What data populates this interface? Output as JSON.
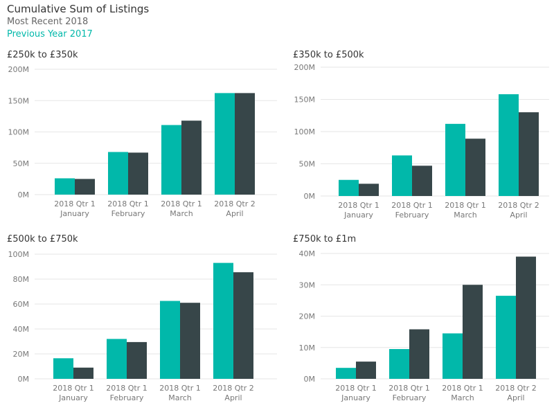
{
  "header": {
    "title": "Cumulative Sum of Listings",
    "legend": [
      {
        "label": "Most Recent 2018",
        "color": "#666666"
      },
      {
        "label": "Previous Year 2017",
        "color": "#01b8aa"
      }
    ]
  },
  "colors": {
    "series_2018": "#01b8aa",
    "series_2017": "#374649",
    "axis_text": "#777777",
    "grid": "#e6e6e6"
  },
  "chart_data": [
    {
      "type": "bar",
      "title": "£250k to £350k",
      "categories": [
        "2018 Qtr 1|January",
        "2018 Qtr 1|February",
        "2018 Qtr 1|March",
        "2018 Qtr 2|April"
      ],
      "yticks": [
        "0M",
        "50M",
        "100M",
        "150M",
        "200M"
      ],
      "ylim": [
        0,
        200
      ],
      "series": [
        {
          "name": "Most Recent 2018",
          "values": [
            26,
            68,
            111,
            162
          ]
        },
        {
          "name": "Previous Year 2017",
          "values": [
            25,
            67,
            118,
            162
          ]
        }
      ]
    },
    {
      "type": "bar",
      "title": "£350k to £500k",
      "categories": [
        "2018 Qtr 1|January",
        "2018 Qtr 1|February",
        "2018 Qtr 1|March",
        "2018 Qtr 2|April"
      ],
      "yticks": [
        "0M",
        "50M",
        "100M",
        "150M",
        "200M"
      ],
      "ylim": [
        0,
        200
      ],
      "series": [
        {
          "name": "Most Recent 2018",
          "values": [
            25,
            63,
            112,
            158
          ]
        },
        {
          "name": "Previous Year 2017",
          "values": [
            19,
            47,
            89,
            130
          ]
        }
      ]
    },
    {
      "type": "bar",
      "title": "£500k to £750k",
      "categories": [
        "2018 Qtr 1|January",
        "2018 Qtr 1|February",
        "2018 Qtr 1|March",
        "2018 Qtr 2|April"
      ],
      "yticks": [
        "0M",
        "20M",
        "40M",
        "60M",
        "80M",
        "100M"
      ],
      "ylim": [
        0,
        100
      ],
      "series": [
        {
          "name": "Most Recent 2018",
          "values": [
            16.5,
            32,
            62.5,
            93
          ]
        },
        {
          "name": "Previous Year 2017",
          "values": [
            9,
            29.5,
            61,
            85.5
          ]
        }
      ]
    },
    {
      "type": "bar",
      "title": "£750k to £1m",
      "categories": [
        "2018 Qtr 1|January",
        "2018 Qtr 1|February",
        "2018 Qtr 1|March",
        "2018 Qtr 2|April"
      ],
      "yticks": [
        "0M",
        "10M",
        "20M",
        "30M",
        "40M"
      ],
      "ylim": [
        0,
        40
      ],
      "series": [
        {
          "name": "Most Recent 2018",
          "values": [
            3.5,
            9.5,
            14.5,
            26.5
          ]
        },
        {
          "name": "Previous Year 2017",
          "values": [
            5.5,
            15.8,
            30,
            39
          ]
        }
      ]
    }
  ]
}
